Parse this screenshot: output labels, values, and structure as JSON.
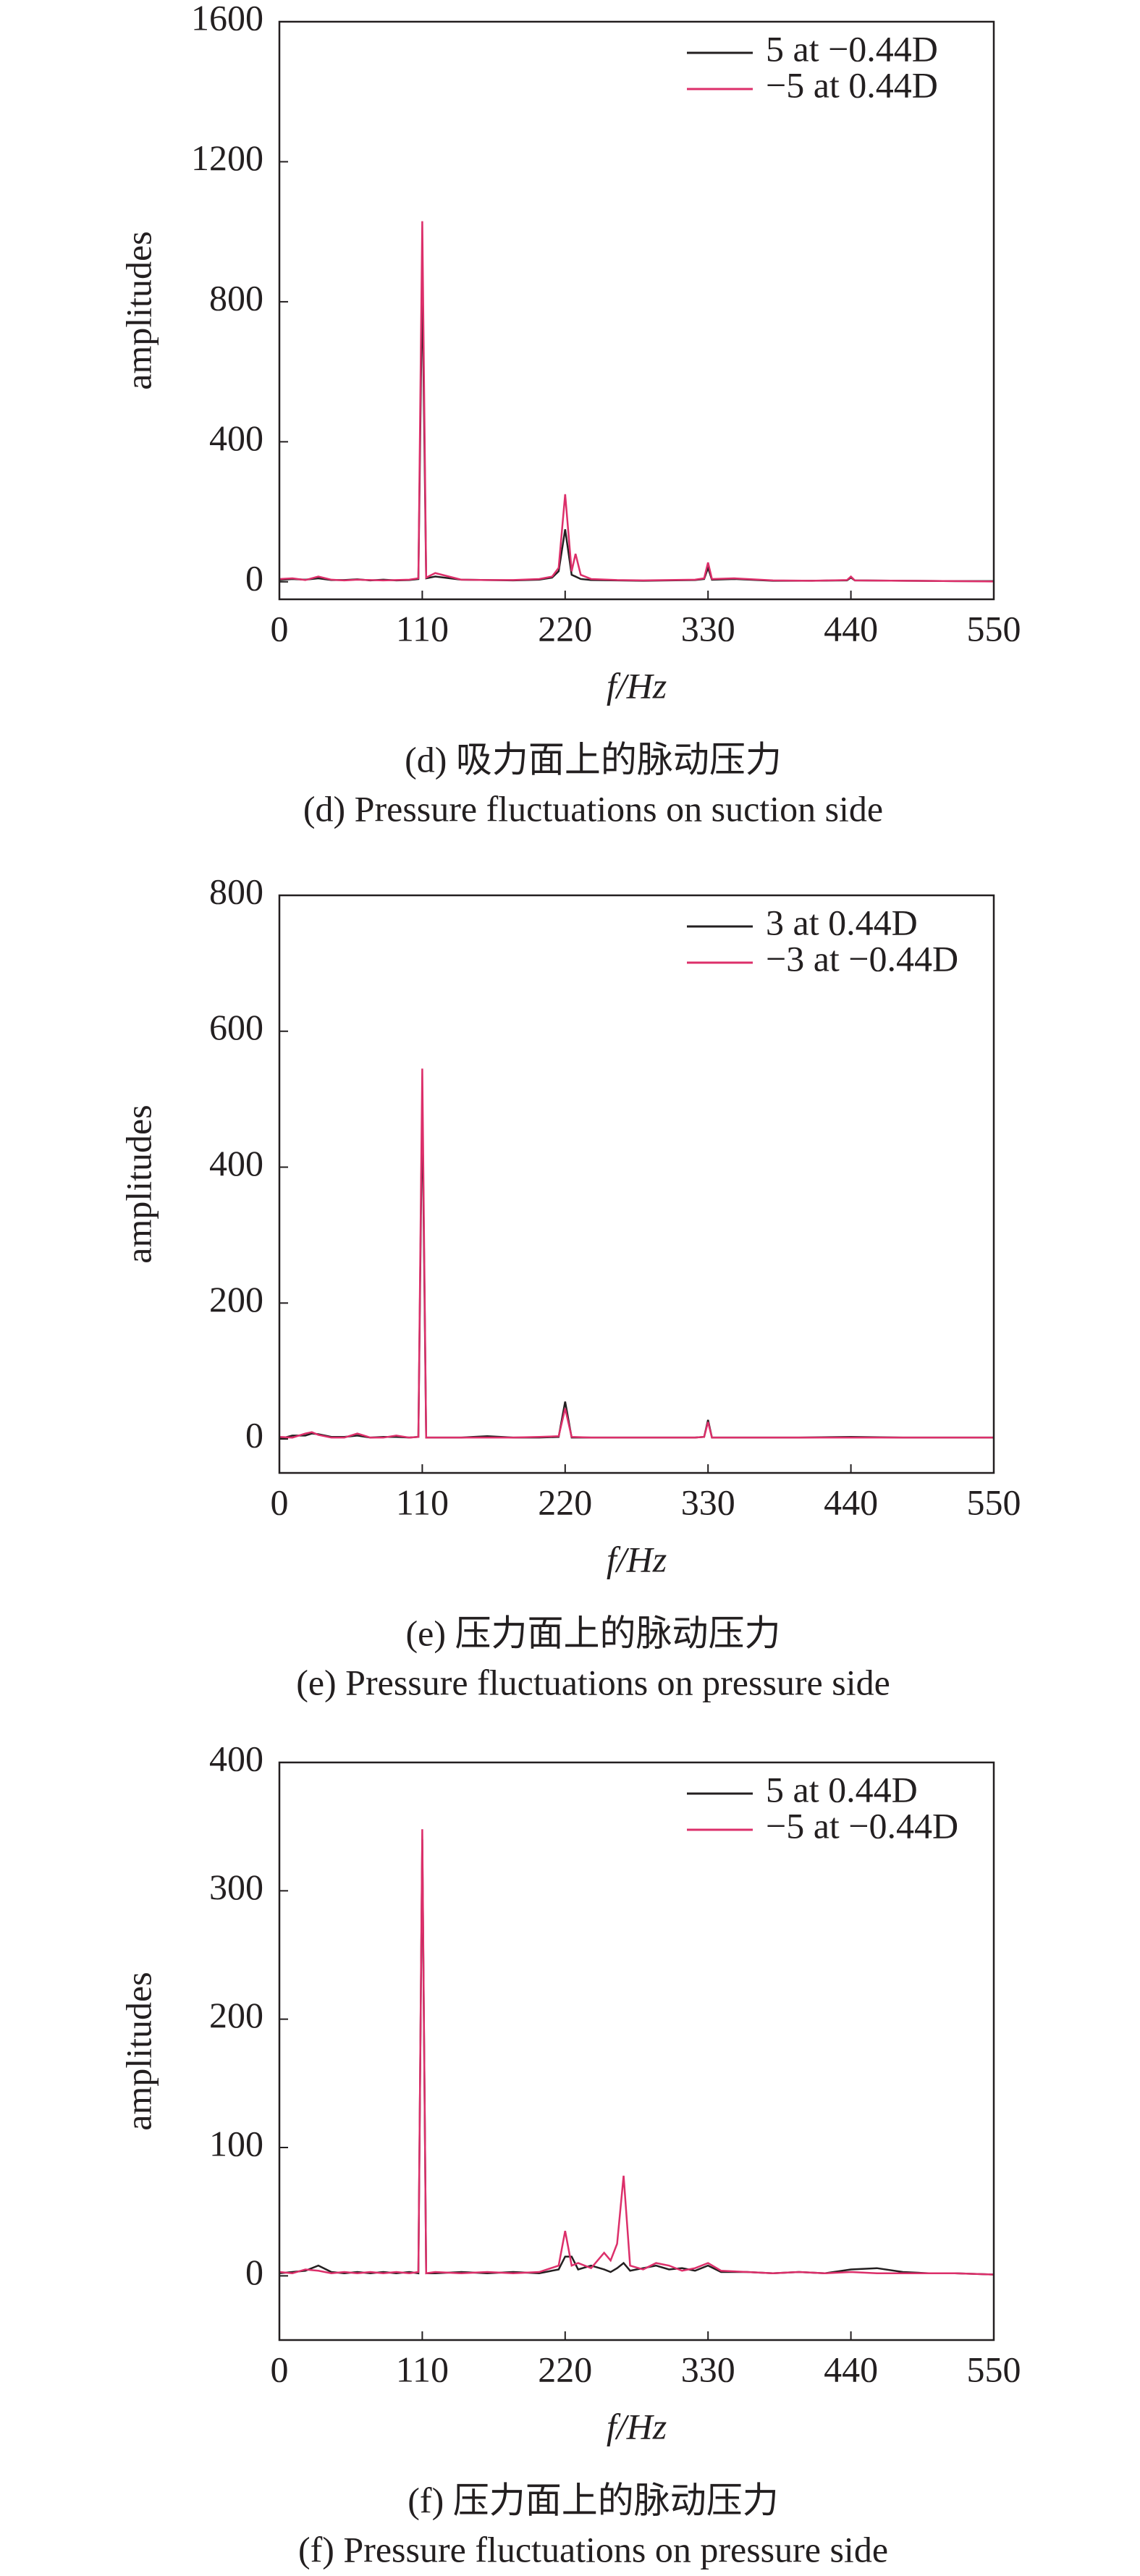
{
  "chart_data": [
    {
      "type": "line",
      "xlabel": "f/Hz",
      "ylabel": "amplitudes",
      "captions": [
        "(d) 吸力面上的脉动压力",
        "(d) Pressure fluctuations on suction side"
      ],
      "xlim": [
        0,
        550
      ],
      "xticks": [
        0,
        110,
        220,
        330,
        440,
        550
      ],
      "ylim": [
        -50,
        1600
      ],
      "yticks": [
        0,
        400,
        800,
        1200,
        1600
      ],
      "x": [
        0,
        10,
        20,
        30,
        40,
        50,
        60,
        70,
        80,
        90,
        100,
        107,
        110,
        113,
        120,
        140,
        160,
        180,
        200,
        210,
        215,
        220,
        225,
        228,
        232,
        240,
        260,
        280,
        300,
        320,
        327,
        330,
        333,
        350,
        380,
        410,
        437,
        440,
        443,
        480,
        520,
        550
      ],
      "series": [
        {
          "name": "5 at −0.44D",
          "color": "#231f20",
          "values": [
            5,
            8,
            6,
            10,
            5,
            5,
            7,
            4,
            6,
            4,
            5,
            8,
            870,
            10,
            15,
            6,
            5,
            4,
            6,
            12,
            30,
            150,
            20,
            15,
            8,
            5,
            4,
            3,
            4,
            5,
            8,
            40,
            6,
            8,
            3,
            3,
            4,
            12,
            4,
            3,
            2,
            2
          ]
        },
        {
          "name": "−5 at 0.44D",
          "color": "#dc2f6a",
          "values": [
            8,
            10,
            5,
            15,
            6,
            4,
            6,
            5,
            4,
            5,
            6,
            10,
            1030,
            12,
            25,
            6,
            5,
            5,
            8,
            15,
            40,
            250,
            30,
            80,
            20,
            8,
            5,
            4,
            5,
            6,
            10,
            55,
            8,
            10,
            4,
            3,
            5,
            15,
            4,
            3,
            2,
            1
          ]
        }
      ]
    },
    {
      "type": "line",
      "xlabel": "f/Hz",
      "ylabel": "amplitudes",
      "captions": [
        "(e) 压力面上的脉动压力",
        "(e) Pressure fluctuations on pressure side"
      ],
      "xlim": [
        0,
        550
      ],
      "xticks": [
        0,
        110,
        220,
        330,
        440,
        550
      ],
      "ylim": [
        -50,
        800
      ],
      "yticks": [
        0,
        200,
        400,
        600,
        800
      ],
      "x": [
        0,
        10,
        20,
        25,
        30,
        40,
        50,
        60,
        70,
        80,
        90,
        100,
        107,
        110,
        113,
        120,
        140,
        160,
        180,
        200,
        215,
        220,
        225,
        240,
        260,
        280,
        300,
        320,
        327,
        330,
        333,
        360,
        400,
        440,
        480,
        520,
        550
      ],
      "series": [
        {
          "name": "3 at 0.44D",
          "color": "#231f20",
          "values": [
            0,
            5,
            5,
            8,
            7,
            3,
            3,
            5,
            2,
            3,
            3,
            2,
            3,
            500,
            2,
            2,
            2,
            4,
            2,
            2,
            3,
            55,
            2,
            2,
            2,
            2,
            2,
            2,
            3,
            28,
            2,
            2,
            2,
            3,
            2,
            2,
            2
          ]
        },
        {
          "name": "−3 at −0.44D",
          "color": "#dc2f6a",
          "values": [
            3,
            2,
            8,
            10,
            6,
            2,
            2,
            8,
            2,
            2,
            5,
            2,
            3,
            545,
            2,
            2,
            2,
            2,
            2,
            3,
            4,
            45,
            3,
            2,
            2,
            2,
            2,
            2,
            3,
            25,
            2,
            2,
            2,
            2,
            2,
            2,
            2
          ]
        }
      ]
    },
    {
      "type": "line",
      "xlabel": "f/Hz",
      "ylabel": "amplitudes",
      "captions": [
        "(f) 压力面上的脉动压力",
        "(f) Pressure fluctuations on pressure side"
      ],
      "xlim": [
        0,
        550
      ],
      "xticks": [
        0,
        110,
        220,
        330,
        440,
        550
      ],
      "ylim": [
        -50,
        400
      ],
      "yticks": [
        0,
        100,
        200,
        300,
        400
      ],
      "x": [
        0,
        10,
        20,
        30,
        40,
        50,
        60,
        70,
        80,
        90,
        100,
        107,
        110,
        113,
        120,
        140,
        160,
        180,
        200,
        215,
        220,
        225,
        230,
        240,
        250,
        255,
        260,
        265,
        270,
        280,
        290,
        300,
        310,
        320,
        330,
        340,
        360,
        380,
        400,
        420,
        440,
        460,
        480,
        500,
        520,
        550
      ],
      "series": [
        {
          "name": "5 at 0.44D",
          "color": "#231f20",
          "values": [
            2,
            3,
            4,
            8,
            3,
            2,
            3,
            2,
            3,
            2,
            3,
            2,
            340,
            2,
            2,
            3,
            2,
            3,
            2,
            5,
            15,
            15,
            5,
            8,
            5,
            3,
            6,
            10,
            4,
            6,
            8,
            5,
            6,
            4,
            8,
            3,
            3,
            2,
            3,
            2,
            5,
            6,
            3,
            2,
            2,
            1
          ]
        },
        {
          "name": "−5 at −0.44D",
          "color": "#dc2f6a",
          "values": [
            3,
            2,
            5,
            4,
            2,
            3,
            2,
            3,
            2,
            3,
            2,
            3,
            348,
            2,
            3,
            2,
            3,
            2,
            3,
            8,
            35,
            8,
            10,
            6,
            18,
            12,
            25,
            78,
            8,
            5,
            10,
            8,
            4,
            6,
            10,
            4,
            3,
            2,
            3,
            2,
            3,
            2,
            2,
            2,
            2,
            1
          ]
        }
      ]
    }
  ]
}
